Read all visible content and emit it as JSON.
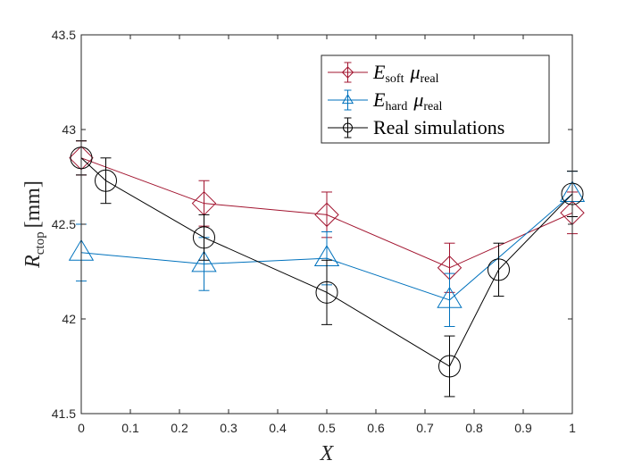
{
  "chart_data": {
    "type": "line",
    "xlabel": "X",
    "ylabel": {
      "main": "R",
      "sub": "ctop",
      "unit": "[mm]"
    },
    "xlim": [
      0,
      1
    ],
    "ylim": [
      41.5,
      43.5
    ],
    "xticks": [
      0,
      0.1,
      0.2,
      0.3,
      0.4,
      0.5,
      0.6,
      0.7,
      0.8,
      0.9,
      1
    ],
    "yticks": [
      41.5,
      42,
      42.5,
      43,
      43.5
    ],
    "xtick_labels": [
      "0",
      "0.1",
      "0.2",
      "0.3",
      "0.4",
      "0.5",
      "0.6",
      "0.7",
      "0.8",
      "0.9",
      "1"
    ],
    "ytick_labels": [
      "41.5",
      "42",
      "42.5",
      "43",
      "43.5"
    ],
    "grid": false,
    "legend_position": "top-right",
    "series": [
      {
        "name": "E_soft μ_real",
        "legend": {
          "main": "E",
          "sub": "soft",
          "mu": "μ",
          "mu_sub": "real"
        },
        "color": "#a2142f",
        "marker": "diamond",
        "x": [
          0,
          0.25,
          0.5,
          0.75,
          1
        ],
        "y": [
          42.85,
          42.61,
          42.55,
          42.27,
          42.56
        ],
        "err": [
          0.09,
          0.12,
          0.12,
          0.13,
          0.11
        ]
      },
      {
        "name": "E_hard μ_real",
        "legend": {
          "main": "E",
          "sub": "hard",
          "mu": "μ",
          "mu_sub": "real"
        },
        "color": "#0072bd",
        "marker": "triangle",
        "x": [
          0,
          0.25,
          0.5,
          0.75,
          1
        ],
        "y": [
          42.35,
          42.29,
          42.32,
          42.1,
          42.66
        ],
        "err": [
          0.15,
          0.14,
          0.14,
          0.14,
          0.12
        ]
      },
      {
        "name": "Real simulations",
        "legend": {
          "main": "Real simulations"
        },
        "color": "#000000",
        "marker": "circle",
        "x": [
          0,
          0.05,
          0.25,
          0.5,
          0.75,
          0.85,
          1
        ],
        "y": [
          42.85,
          42.73,
          42.43,
          42.14,
          41.75,
          42.26,
          42.66
        ],
        "err": [
          0.09,
          0.12,
          0.12,
          0.17,
          0.16,
          0.14,
          0.12
        ]
      }
    ]
  }
}
